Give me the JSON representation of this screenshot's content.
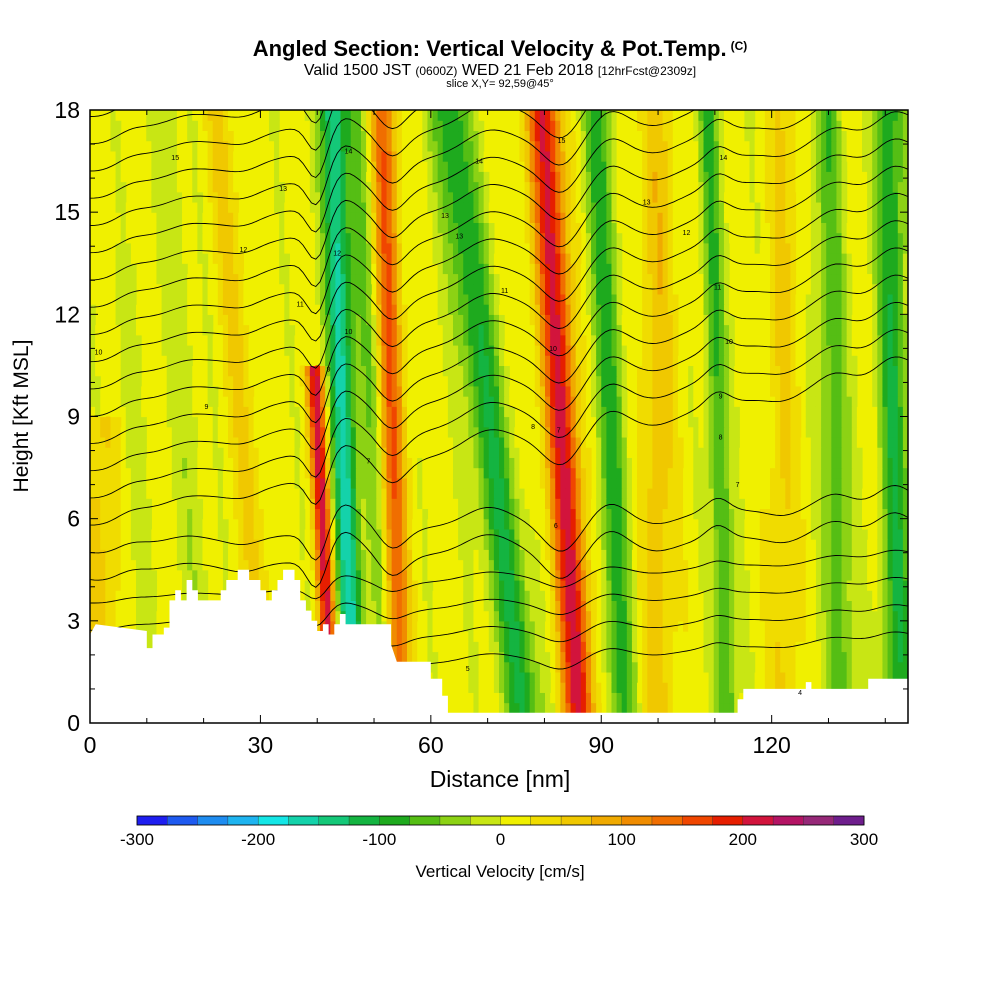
{
  "chart_data": {
    "type": "heatmap",
    "title": "Angled Section: Vertical Velocity & Pot.Temp.",
    "title_unit": "(C)",
    "subtitle_pre": "Valid 1500 JST",
    "subtitle_z": "(0600Z)",
    "subtitle_date": "WED 21 Feb 2018",
    "subtitle_fcst": "[12hrFcst@2309z]",
    "slice": "slice X,Y= 92,59@45°",
    "xlabel": "Distance [nm]",
    "ylabel": "Height [Kft MSL]",
    "xlim": [
      0,
      144
    ],
    "ylim": [
      0,
      18
    ],
    "x_ticks": [
      0,
      30,
      60,
      90,
      120
    ],
    "x_tick_labels": [
      "0",
      "30",
      "60",
      "90",
      "120"
    ],
    "y_ticks": [
      0,
      3,
      6,
      9,
      12,
      15,
      18
    ],
    "y_tick_labels": [
      "0",
      "3",
      "6",
      "9",
      "12",
      "15",
      "18"
    ],
    "colorbar": {
      "label": "Vertical Velocity [cm/s]",
      "range": [
        -300,
        300
      ],
      "tick_values": [
        -300,
        -200,
        -100,
        0,
        100,
        200,
        300
      ],
      "tick_labels": [
        "-300",
        "-200",
        "-100",
        "0",
        "100",
        "200",
        "300"
      ],
      "colors": [
        "#1e1ef0",
        "#1e5af0",
        "#1e8cf0",
        "#1eb4f0",
        "#14e6e6",
        "#14d2aa",
        "#14c878",
        "#14b441",
        "#1eaa1e",
        "#55be14",
        "#8cd214",
        "#c8e614",
        "#f0f000",
        "#f0dc00",
        "#f0c800",
        "#f0aa00",
        "#f08c00",
        "#f06e00",
        "#f04600",
        "#e61e00",
        "#d2143c",
        "#b41464",
        "#962878",
        "#6e1e8c"
      ]
    },
    "velocity_bands": [
      {
        "x": 2,
        "w": 3,
        "h_max": 9.0,
        "value": 50,
        "tilt": 0.0
      },
      {
        "x": 17,
        "w": 2.5,
        "h_max": 18,
        "value": -30,
        "tilt": 0.4
      },
      {
        "x": 27,
        "w": 2.5,
        "h_max": 18,
        "value": 45,
        "tilt": 0.5
      },
      {
        "x": 40,
        "w": 1.5,
        "h_max": 10.5,
        "value": 200,
        "tilt": 0.3
      },
      {
        "x": 44.5,
        "w": 2.2,
        "h_max": 18,
        "value": -170,
        "tilt": 0.2
      },
      {
        "x": 53,
        "w": 2.2,
        "h_max": 18,
        "value": 140,
        "tilt": 0.15
      },
      {
        "x": 49.5,
        "w": 2.2,
        "h_max": 18,
        "value": -60,
        "tilt": 0.3
      },
      {
        "x": 70,
        "w": 3.5,
        "h_max": 18,
        "value": -110,
        "tilt": 0.75
      },
      {
        "x": 83,
        "w": 2.8,
        "h_max": 18,
        "value": 200,
        "tilt": 0.35
      },
      {
        "x": 91.5,
        "w": 2.5,
        "h_max": 18,
        "value": -95,
        "tilt": 0.25
      },
      {
        "x": 100,
        "w": 3,
        "h_max": 18,
        "value": 55,
        "tilt": 0.0
      },
      {
        "x": 110.5,
        "w": 1.8,
        "h_max": 18,
        "value": -90,
        "tilt": 0.2
      },
      {
        "x": 122,
        "w": 2.5,
        "h_max": 18,
        "value": 45,
        "tilt": 0.0
      },
      {
        "x": 131,
        "w": 2.5,
        "h_max": 18,
        "value": -75,
        "tilt": 0.15
      },
      {
        "x": 141.5,
        "w": 2.5,
        "h_max": 18,
        "value": -110,
        "tilt": 0.1
      },
      {
        "x": 7,
        "w": 2,
        "h_max": 14,
        "value": -20,
        "tilt": 0.3
      }
    ],
    "terrain": [
      [
        0,
        2.6
      ],
      [
        1,
        2.9
      ],
      [
        10,
        2.7
      ],
      [
        10,
        2.2
      ],
      [
        11,
        2.2
      ],
      [
        11,
        2.6
      ],
      [
        12,
        2.6
      ],
      [
        12,
        2.6
      ],
      [
        13,
        2.6
      ],
      [
        13,
        2.8
      ],
      [
        14,
        2.8
      ],
      [
        14,
        3.6
      ],
      [
        15,
        3.6
      ],
      [
        15,
        3.9
      ],
      [
        16,
        3.9
      ],
      [
        16,
        3.6
      ],
      [
        17,
        3.6
      ],
      [
        17,
        4.2
      ],
      [
        18,
        4.2
      ],
      [
        18,
        3.9
      ],
      [
        19,
        3.9
      ],
      [
        19,
        3.6
      ],
      [
        23,
        3.6
      ],
      [
        23,
        3.9
      ],
      [
        24,
        3.9
      ],
      [
        24,
        4.2
      ],
      [
        26,
        4.2
      ],
      [
        26,
        4.5
      ],
      [
        28,
        4.5
      ],
      [
        28,
        4.2
      ],
      [
        30,
        4.2
      ],
      [
        30,
        3.9
      ],
      [
        31,
        3.9
      ],
      [
        31,
        3.6
      ],
      [
        32,
        3.6
      ],
      [
        32,
        3.9
      ],
      [
        33,
        3.9
      ],
      [
        33,
        4.2
      ],
      [
        34,
        4.2
      ],
      [
        34,
        4.5
      ],
      [
        36,
        4.5
      ],
      [
        36,
        4.2
      ],
      [
        37,
        4.2
      ],
      [
        37,
        3.6
      ],
      [
        38,
        3.6
      ],
      [
        38,
        3.3
      ],
      [
        39,
        3.3
      ],
      [
        39,
        3.0
      ],
      [
        40,
        3.0
      ],
      [
        40,
        2.7
      ],
      [
        41,
        2.7
      ],
      [
        41,
        2.9
      ],
      [
        42,
        2.9
      ],
      [
        42,
        2.6
      ],
      [
        43,
        2.6
      ],
      [
        43,
        2.9
      ],
      [
        44,
        2.9
      ],
      [
        44,
        3.2
      ],
      [
        45,
        3.2
      ],
      [
        45,
        2.9
      ],
      [
        53,
        2.9
      ],
      [
        53,
        2.3
      ],
      [
        54,
        1.8
      ],
      [
        60,
        1.8
      ],
      [
        60,
        1.3
      ],
      [
        62,
        1.3
      ],
      [
        62,
        0.8
      ],
      [
        63,
        0.8
      ],
      [
        63,
        0.3
      ],
      [
        114,
        0.3
      ],
      [
        114,
        0.7
      ],
      [
        115,
        0.7
      ],
      [
        115,
        1.0
      ],
      [
        126,
        1.0
      ],
      [
        126,
        1.2
      ],
      [
        127,
        1.2
      ],
      [
        127,
        1.0
      ],
      [
        137,
        1.0
      ],
      [
        137,
        1.3
      ],
      [
        144,
        1.3
      ],
      [
        144,
        0
      ],
      [
        0,
        0
      ]
    ],
    "theta_contour_labels": [
      {
        "x": 1.5,
        "h": 10.9,
        "label": "10"
      },
      {
        "x": 15,
        "h": 16.6,
        "label": "15"
      },
      {
        "x": 34,
        "h": 15.7,
        "label": "13"
      },
      {
        "x": 27,
        "h": 13.9,
        "label": "12"
      },
      {
        "x": 37,
        "h": 12.3,
        "label": "11"
      },
      {
        "x": 20.5,
        "h": 9.3,
        "label": "9"
      },
      {
        "x": 45.5,
        "h": 16.8,
        "label": "14"
      },
      {
        "x": 43.5,
        "h": 13.8,
        "label": "12"
      },
      {
        "x": 45.5,
        "h": 11.5,
        "label": "10"
      },
      {
        "x": 42,
        "h": 10.4,
        "label": "9"
      },
      {
        "x": 49,
        "h": 7.7,
        "label": "7"
      },
      {
        "x": 62.5,
        "h": 14.9,
        "label": "13"
      },
      {
        "x": 65,
        "h": 14.3,
        "label": "13"
      },
      {
        "x": 68.5,
        "h": 16.5,
        "label": "14"
      },
      {
        "x": 73,
        "h": 12.7,
        "label": "11"
      },
      {
        "x": 81.5,
        "h": 11.0,
        "label": "10"
      },
      {
        "x": 78,
        "h": 8.7,
        "label": "8"
      },
      {
        "x": 82.5,
        "h": 8.6,
        "label": "7"
      },
      {
        "x": 82,
        "h": 5.8,
        "label": "6"
      },
      {
        "x": 83,
        "h": 17.1,
        "label": "15"
      },
      {
        "x": 98,
        "h": 15.3,
        "label": "13"
      },
      {
        "x": 105,
        "h": 14.4,
        "label": "12"
      },
      {
        "x": 110.5,
        "h": 12.8,
        "label": "11"
      },
      {
        "x": 112.5,
        "h": 11.2,
        "label": "10"
      },
      {
        "x": 111,
        "h": 9.6,
        "label": "9"
      },
      {
        "x": 111,
        "h": 8.4,
        "label": "8"
      },
      {
        "x": 114,
        "h": 7.0,
        "label": "7"
      },
      {
        "x": 111.5,
        "h": 16.6,
        "label": "14"
      },
      {
        "x": 66.5,
        "h": 1.6,
        "label": "5"
      },
      {
        "x": 125,
        "h": 0.9,
        "label": "4"
      }
    ]
  }
}
